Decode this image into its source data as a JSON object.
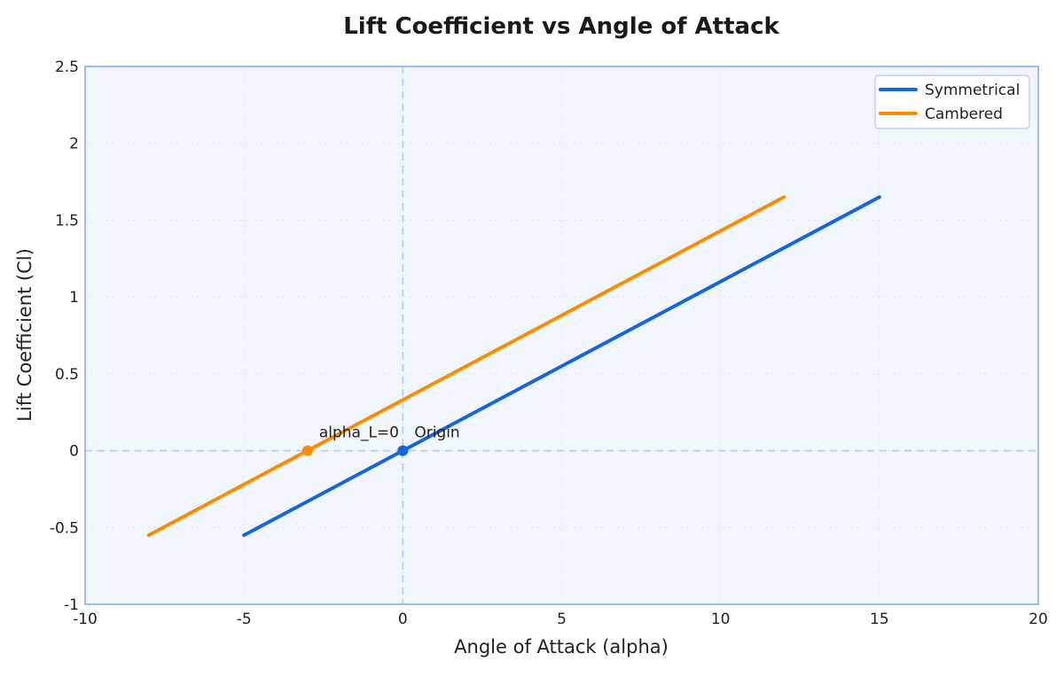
{
  "chart_data": {
    "type": "line",
    "title": "Lift Coefficient vs Angle of Attack",
    "xlabel": "Angle of Attack (alpha)",
    "ylabel": "Lift Coefficient (Cl)",
    "xlim": [
      -10,
      20
    ],
    "ylim": [
      -1,
      2.5
    ],
    "xticks": [
      -10,
      -5,
      0,
      5,
      10,
      15,
      20
    ],
    "yticks": [
      -1,
      -0.5,
      0,
      0.5,
      1,
      1.5,
      2,
      2.5
    ],
    "grid": true,
    "legend_position": "top-right",
    "reference_lines": {
      "x": 0,
      "y": 0
    },
    "series": [
      {
        "name": "Symmetrical",
        "color": "#1565e0",
        "x": [
          -5,
          15
        ],
        "y": [
          -0.55,
          1.65
        ]
      },
      {
        "name": "Cambered",
        "color": "#fb8c00",
        "x": [
          -8,
          12
        ],
        "y": [
          -0.55,
          1.65
        ]
      }
    ],
    "annotations": [
      {
        "text": "Origin",
        "x": 0,
        "y": 0,
        "color": "#1565e0"
      },
      {
        "text": "alpha_L=0",
        "x": -3,
        "y": 0,
        "color": "#fb8c00"
      }
    ]
  }
}
